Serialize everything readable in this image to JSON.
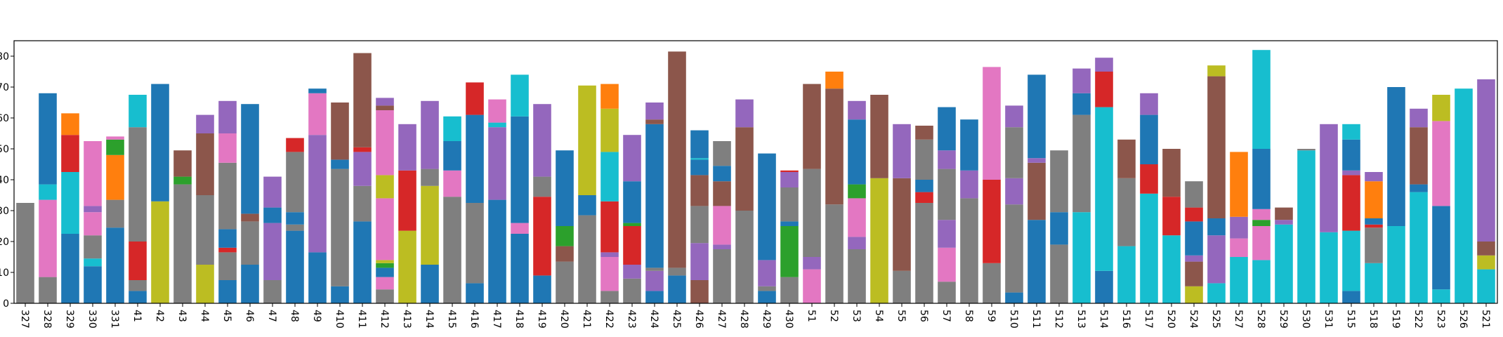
{
  "chart_data": {
    "type": "bar",
    "stacked": true,
    "grid": false,
    "categories": [
      "327",
      "328",
      "329",
      "330",
      "331",
      "41",
      "42",
      "43",
      "44",
      "45",
      "46",
      "47",
      "48",
      "49",
      "410",
      "411",
      "412",
      "413",
      "414",
      "415",
      "416",
      "417",
      "418",
      "419",
      "420",
      "421",
      "422",
      "423",
      "424",
      "425",
      "426",
      "427",
      "428",
      "429",
      "430",
      "51",
      "52",
      "53",
      "54",
      "55",
      "56",
      "57",
      "58",
      "59",
      "510",
      "511",
      "512",
      "513",
      "514",
      "516",
      "517",
      "520",
      "524",
      "525",
      "527",
      "528",
      "529",
      "530",
      "531",
      "515",
      "518",
      "519",
      "522",
      "523",
      "526",
      "521"
    ],
    "ylim": [
      0,
      85
    ],
    "yticks": [
      0,
      10,
      20,
      30,
      40,
      50,
      60,
      70,
      80
    ],
    "colors": {
      "blue": "#1f77b4",
      "orange": "#ff7f0e",
      "green": "#2ca02c",
      "red": "#d62728",
      "purple": "#9467bd",
      "brown": "#8c564b",
      "pink": "#e377c2",
      "gray": "#7f7f7f",
      "olive": "#bcbd22",
      "cyan": "#17becf"
    },
    "stacks": [
      [
        [
          "gray",
          32.5
        ]
      ],
      [
        [
          "gray",
          8.5
        ],
        [
          "pink",
          25
        ],
        [
          "cyan",
          5
        ],
        [
          "blue",
          29.5
        ]
      ],
      [
        [
          "blue",
          22.5
        ],
        [
          "cyan",
          20
        ],
        [
          "red",
          12
        ],
        [
          "orange",
          7
        ]
      ],
      [
        [
          "blue",
          12
        ],
        [
          "cyan",
          2.5
        ],
        [
          "gray",
          7.5
        ],
        [
          "pink",
          7.5
        ],
        [
          "purple",
          2
        ],
        [
          "pink",
          21
        ]
      ],
      [
        [
          "blue",
          24.5
        ],
        [
          "gray",
          9
        ],
        [
          "orange",
          14.5
        ],
        [
          "green",
          5
        ],
        [
          "pink",
          1
        ]
      ],
      [
        [
          "blue",
          4
        ],
        [
          "gray",
          3.5
        ],
        [
          "red",
          12.5
        ],
        [
          "gray",
          37
        ],
        [
          "cyan",
          10.5
        ]
      ],
      [
        [
          "olive",
          33
        ],
        [
          "blue",
          38
        ]
      ],
      [
        [
          "gray",
          38.5
        ],
        [
          "green",
          2.5
        ],
        [
          "brown",
          8.5
        ]
      ],
      [
        [
          "olive",
          12.5
        ],
        [
          "gray",
          22.5
        ],
        [
          "brown",
          20
        ],
        [
          "purple",
          6
        ]
      ],
      [
        [
          "blue",
          7.5
        ],
        [
          "gray",
          9
        ],
        [
          "red",
          1.5
        ],
        [
          "blue",
          6
        ],
        [
          "gray",
          21.5
        ],
        [
          "pink",
          9.5
        ],
        [
          "purple",
          10.5
        ]
      ],
      [
        [
          "blue",
          12.5
        ],
        [
          "gray",
          14
        ],
        [
          "brown",
          2.5
        ],
        [
          "blue",
          35.5
        ]
      ],
      [
        [
          "gray",
          7.5
        ],
        [
          "purple",
          18.5
        ],
        [
          "blue",
          5
        ],
        [
          "purple",
          10
        ]
      ],
      [
        [
          "blue",
          23.5
        ],
        [
          "gray",
          2
        ],
        [
          "blue",
          4
        ],
        [
          "gray",
          19.5
        ],
        [
          "red",
          4.5
        ]
      ],
      [
        [
          "blue",
          16.5
        ],
        [
          "purple",
          38
        ],
        [
          "pink",
          13.5
        ],
        [
          "blue",
          1.5
        ]
      ],
      [
        [
          "blue",
          5.5
        ],
        [
          "gray",
          38
        ],
        [
          "blue",
          3
        ],
        [
          "brown",
          18.5
        ]
      ],
      [
        [
          "blue",
          26.5
        ],
        [
          "gray",
          11.5
        ],
        [
          "purple",
          11
        ],
        [
          "red",
          1.5
        ],
        [
          "brown",
          30.5
        ]
      ],
      [
        [
          "gray",
          4.5
        ],
        [
          "pink",
          4
        ],
        [
          "blue",
          3
        ],
        [
          "green",
          1.5
        ],
        [
          "olive",
          1
        ],
        [
          "pink",
          20
        ],
        [
          "olive",
          7.5
        ],
        [
          "pink",
          21
        ],
        [
          "brown",
          1.5
        ],
        [
          "purple",
          2.5
        ]
      ],
      [
        [
          "olive",
          23.5
        ],
        [
          "red",
          19.5
        ],
        [
          "purple",
          15
        ]
      ],
      [
        [
          "blue",
          12.5
        ],
        [
          "olive",
          25.5
        ],
        [
          "gray",
          5.5
        ],
        [
          "purple",
          22
        ]
      ],
      [
        [
          "gray",
          34.5
        ],
        [
          "pink",
          8.5
        ],
        [
          "blue",
          9.5
        ],
        [
          "cyan",
          8
        ]
      ],
      [
        [
          "blue",
          6.5
        ],
        [
          "gray",
          26
        ],
        [
          "blue",
          28.5
        ],
        [
          "red",
          10.5
        ]
      ],
      [
        [
          "blue",
          33.5
        ],
        [
          "purple",
          23.5
        ],
        [
          "cyan",
          1.5
        ],
        [
          "pink",
          7.5
        ]
      ],
      [
        [
          "blue",
          22.5
        ],
        [
          "pink",
          3.5
        ],
        [
          "blue",
          34.5
        ],
        [
          "cyan",
          13.5
        ]
      ],
      [
        [
          "blue",
          9
        ],
        [
          "red",
          25.5
        ],
        [
          "gray",
          6.5
        ],
        [
          "purple",
          23.5
        ]
      ],
      [
        [
          "gray",
          13.5
        ],
        [
          "brown",
          5
        ],
        [
          "green",
          6.5
        ],
        [
          "blue",
          24.5
        ]
      ],
      [
        [
          "gray",
          28.5
        ],
        [
          "blue",
          6.5
        ],
        [
          "olive",
          35.5
        ]
      ],
      [
        [
          "gray",
          4
        ],
        [
          "pink",
          11
        ],
        [
          "purple",
          1.5
        ],
        [
          "red",
          16.5
        ],
        [
          "cyan",
          16
        ],
        [
          "olive",
          14
        ],
        [
          "orange",
          8
        ]
      ],
      [
        [
          "gray",
          8
        ],
        [
          "purple",
          4.5
        ],
        [
          "red",
          12.5
        ],
        [
          "green",
          1
        ],
        [
          "blue",
          13.5
        ],
        [
          "purple",
          15
        ]
      ],
      [
        [
          "blue",
          4
        ],
        [
          "purple",
          6.5
        ],
        [
          "gray",
          1
        ],
        [
          "blue",
          46.5
        ],
        [
          "brown",
          1.5
        ],
        [
          "purple",
          5.5
        ]
      ],
      [
        [
          "blue",
          9
        ],
        [
          "gray",
          2.5
        ],
        [
          "brown",
          70
        ]
      ],
      [
        [
          "brown",
          7.5
        ],
        [
          "purple",
          12
        ],
        [
          "gray",
          12
        ],
        [
          "brown",
          10
        ],
        [
          "blue",
          5
        ],
        [
          "cyan",
          0.5
        ],
        [
          "blue",
          9
        ]
      ],
      [
        [
          "gray",
          17.5
        ],
        [
          "purple",
          1.5
        ],
        [
          "pink",
          12.5
        ],
        [
          "brown",
          8
        ],
        [
          "blue",
          5
        ],
        [
          "gray",
          8
        ]
      ],
      [
        [
          "gray",
          30
        ],
        [
          "brown",
          27
        ],
        [
          "purple",
          9
        ]
      ],
      [
        [
          "blue",
          4
        ],
        [
          "gray",
          1.5
        ],
        [
          "purple",
          8.5
        ],
        [
          "blue",
          34.5
        ]
      ],
      [
        [
          "gray",
          8.5
        ],
        [
          "green",
          16.5
        ],
        [
          "blue",
          1.5
        ],
        [
          "gray",
          11
        ],
        [
          "purple",
          5
        ],
        [
          "red",
          0.5
        ]
      ],
      [
        [
          "pink",
          11
        ],
        [
          "purple",
          4
        ],
        [
          "gray",
          28.5
        ],
        [
          "brown",
          27.5
        ]
      ],
      [
        [
          "gray",
          32
        ],
        [
          "brown",
          37.5
        ],
        [
          "orange",
          5.5
        ]
      ],
      [
        [
          "gray",
          17.5
        ],
        [
          "purple",
          4
        ],
        [
          "pink",
          12.5
        ],
        [
          "green",
          4.5
        ],
        [
          "blue",
          21
        ],
        [
          "purple",
          6
        ]
      ],
      [
        [
          "olive",
          40.5
        ],
        [
          "brown",
          27
        ]
      ],
      [
        [
          "gray",
          10.5
        ],
        [
          "brown",
          30
        ],
        [
          "purple",
          17.5
        ]
      ],
      [
        [
          "gray",
          32.5
        ],
        [
          "red",
          3.5
        ],
        [
          "blue",
          4
        ],
        [
          "gray",
          13
        ],
        [
          "brown",
          4.5
        ]
      ],
      [
        [
          "gray",
          7
        ],
        [
          "pink",
          11
        ],
        [
          "purple",
          9
        ],
        [
          "gray",
          16.5
        ],
        [
          "purple",
          6
        ],
        [
          "blue",
          14
        ]
      ],
      [
        [
          "gray",
          34
        ],
        [
          "purple",
          9
        ],
        [
          "blue",
          16.5
        ]
      ],
      [
        [
          "gray",
          13
        ],
        [
          "red",
          27
        ],
        [
          "pink",
          36.5
        ]
      ],
      [
        [
          "blue",
          3.5
        ],
        [
          "gray",
          28.5
        ],
        [
          "purple",
          8.5
        ],
        [
          "gray",
          16.5
        ],
        [
          "purple",
          7
        ]
      ],
      [
        [
          "blue",
          27
        ],
        [
          "brown",
          18.5
        ],
        [
          "purple",
          1.5
        ],
        [
          "blue",
          27
        ]
      ],
      [
        [
          "gray",
          19
        ],
        [
          "blue",
          10.5
        ],
        [
          "gray",
          20
        ]
      ],
      [
        [
          "cyan",
          29.5
        ],
        [
          "gray",
          31.5
        ],
        [
          "blue",
          7
        ],
        [
          "purple",
          8
        ]
      ],
      [
        [
          "blue",
          10.5
        ],
        [
          "cyan",
          53
        ],
        [
          "red",
          11.5
        ],
        [
          "purple",
          4.5
        ]
      ],
      [
        [
          "cyan",
          18.5
        ],
        [
          "gray",
          22
        ],
        [
          "brown",
          12.5
        ]
      ],
      [
        [
          "cyan",
          35.5
        ],
        [
          "red",
          9.5
        ],
        [
          "blue",
          16
        ],
        [
          "purple",
          7
        ]
      ],
      [
        [
          "cyan",
          22
        ],
        [
          "red",
          12.5
        ],
        [
          "brown",
          15.5
        ]
      ],
      [
        [
          "olive",
          5.5
        ],
        [
          "brown",
          8
        ],
        [
          "purple",
          2
        ],
        [
          "blue",
          11
        ],
        [
          "red",
          4.5
        ],
        [
          "gray",
          8.5
        ]
      ],
      [
        [
          "cyan",
          6.5
        ],
        [
          "purple",
          15.5
        ],
        [
          "blue",
          5.5
        ],
        [
          "brown",
          46
        ],
        [
          "olive",
          3.5
        ]
      ],
      [
        [
          "cyan",
          15
        ],
        [
          "pink",
          6
        ],
        [
          "purple",
          7
        ],
        [
          "orange",
          21
        ]
      ],
      [
        [
          "cyan",
          14
        ],
        [
          "pink",
          11
        ],
        [
          "green",
          2
        ],
        [
          "pink",
          3.5
        ],
        [
          "blue",
          19.5
        ],
        [
          "cyan",
          32
        ]
      ],
      [
        [
          "cyan",
          25.5
        ],
        [
          "purple",
          1.5
        ],
        [
          "brown",
          4
        ]
      ],
      [
        [
          "cyan",
          49.5
        ],
        [
          "gray",
          0.5
        ]
      ],
      [
        [
          "cyan",
          23
        ],
        [
          "purple",
          35
        ]
      ],
      [
        [
          "blue",
          4
        ],
        [
          "cyan",
          19.5
        ],
        [
          "red",
          18
        ],
        [
          "purple",
          1.5
        ],
        [
          "blue",
          10
        ],
        [
          "cyan",
          5
        ]
      ],
      [
        [
          "cyan",
          13
        ],
        [
          "gray",
          11.5
        ],
        [
          "red",
          1
        ],
        [
          "blue",
          2
        ],
        [
          "orange",
          12
        ],
        [
          "purple",
          3
        ]
      ],
      [
        [
          "cyan",
          25
        ],
        [
          "blue",
          45
        ]
      ],
      [
        [
          "cyan",
          36
        ],
        [
          "blue",
          2.5
        ],
        [
          "brown",
          18.5
        ],
        [
          "purple",
          6
        ]
      ],
      [
        [
          "cyan",
          4.5
        ],
        [
          "blue",
          27
        ],
        [
          "pink",
          27.5
        ],
        [
          "olive",
          8.5
        ]
      ],
      [
        [
          "cyan",
          69.5
        ]
      ],
      [
        [
          "cyan",
          11
        ],
        [
          "olive",
          4.5
        ],
        [
          "brown",
          4.5
        ],
        [
          "purple",
          52.5
        ]
      ]
    ]
  }
}
